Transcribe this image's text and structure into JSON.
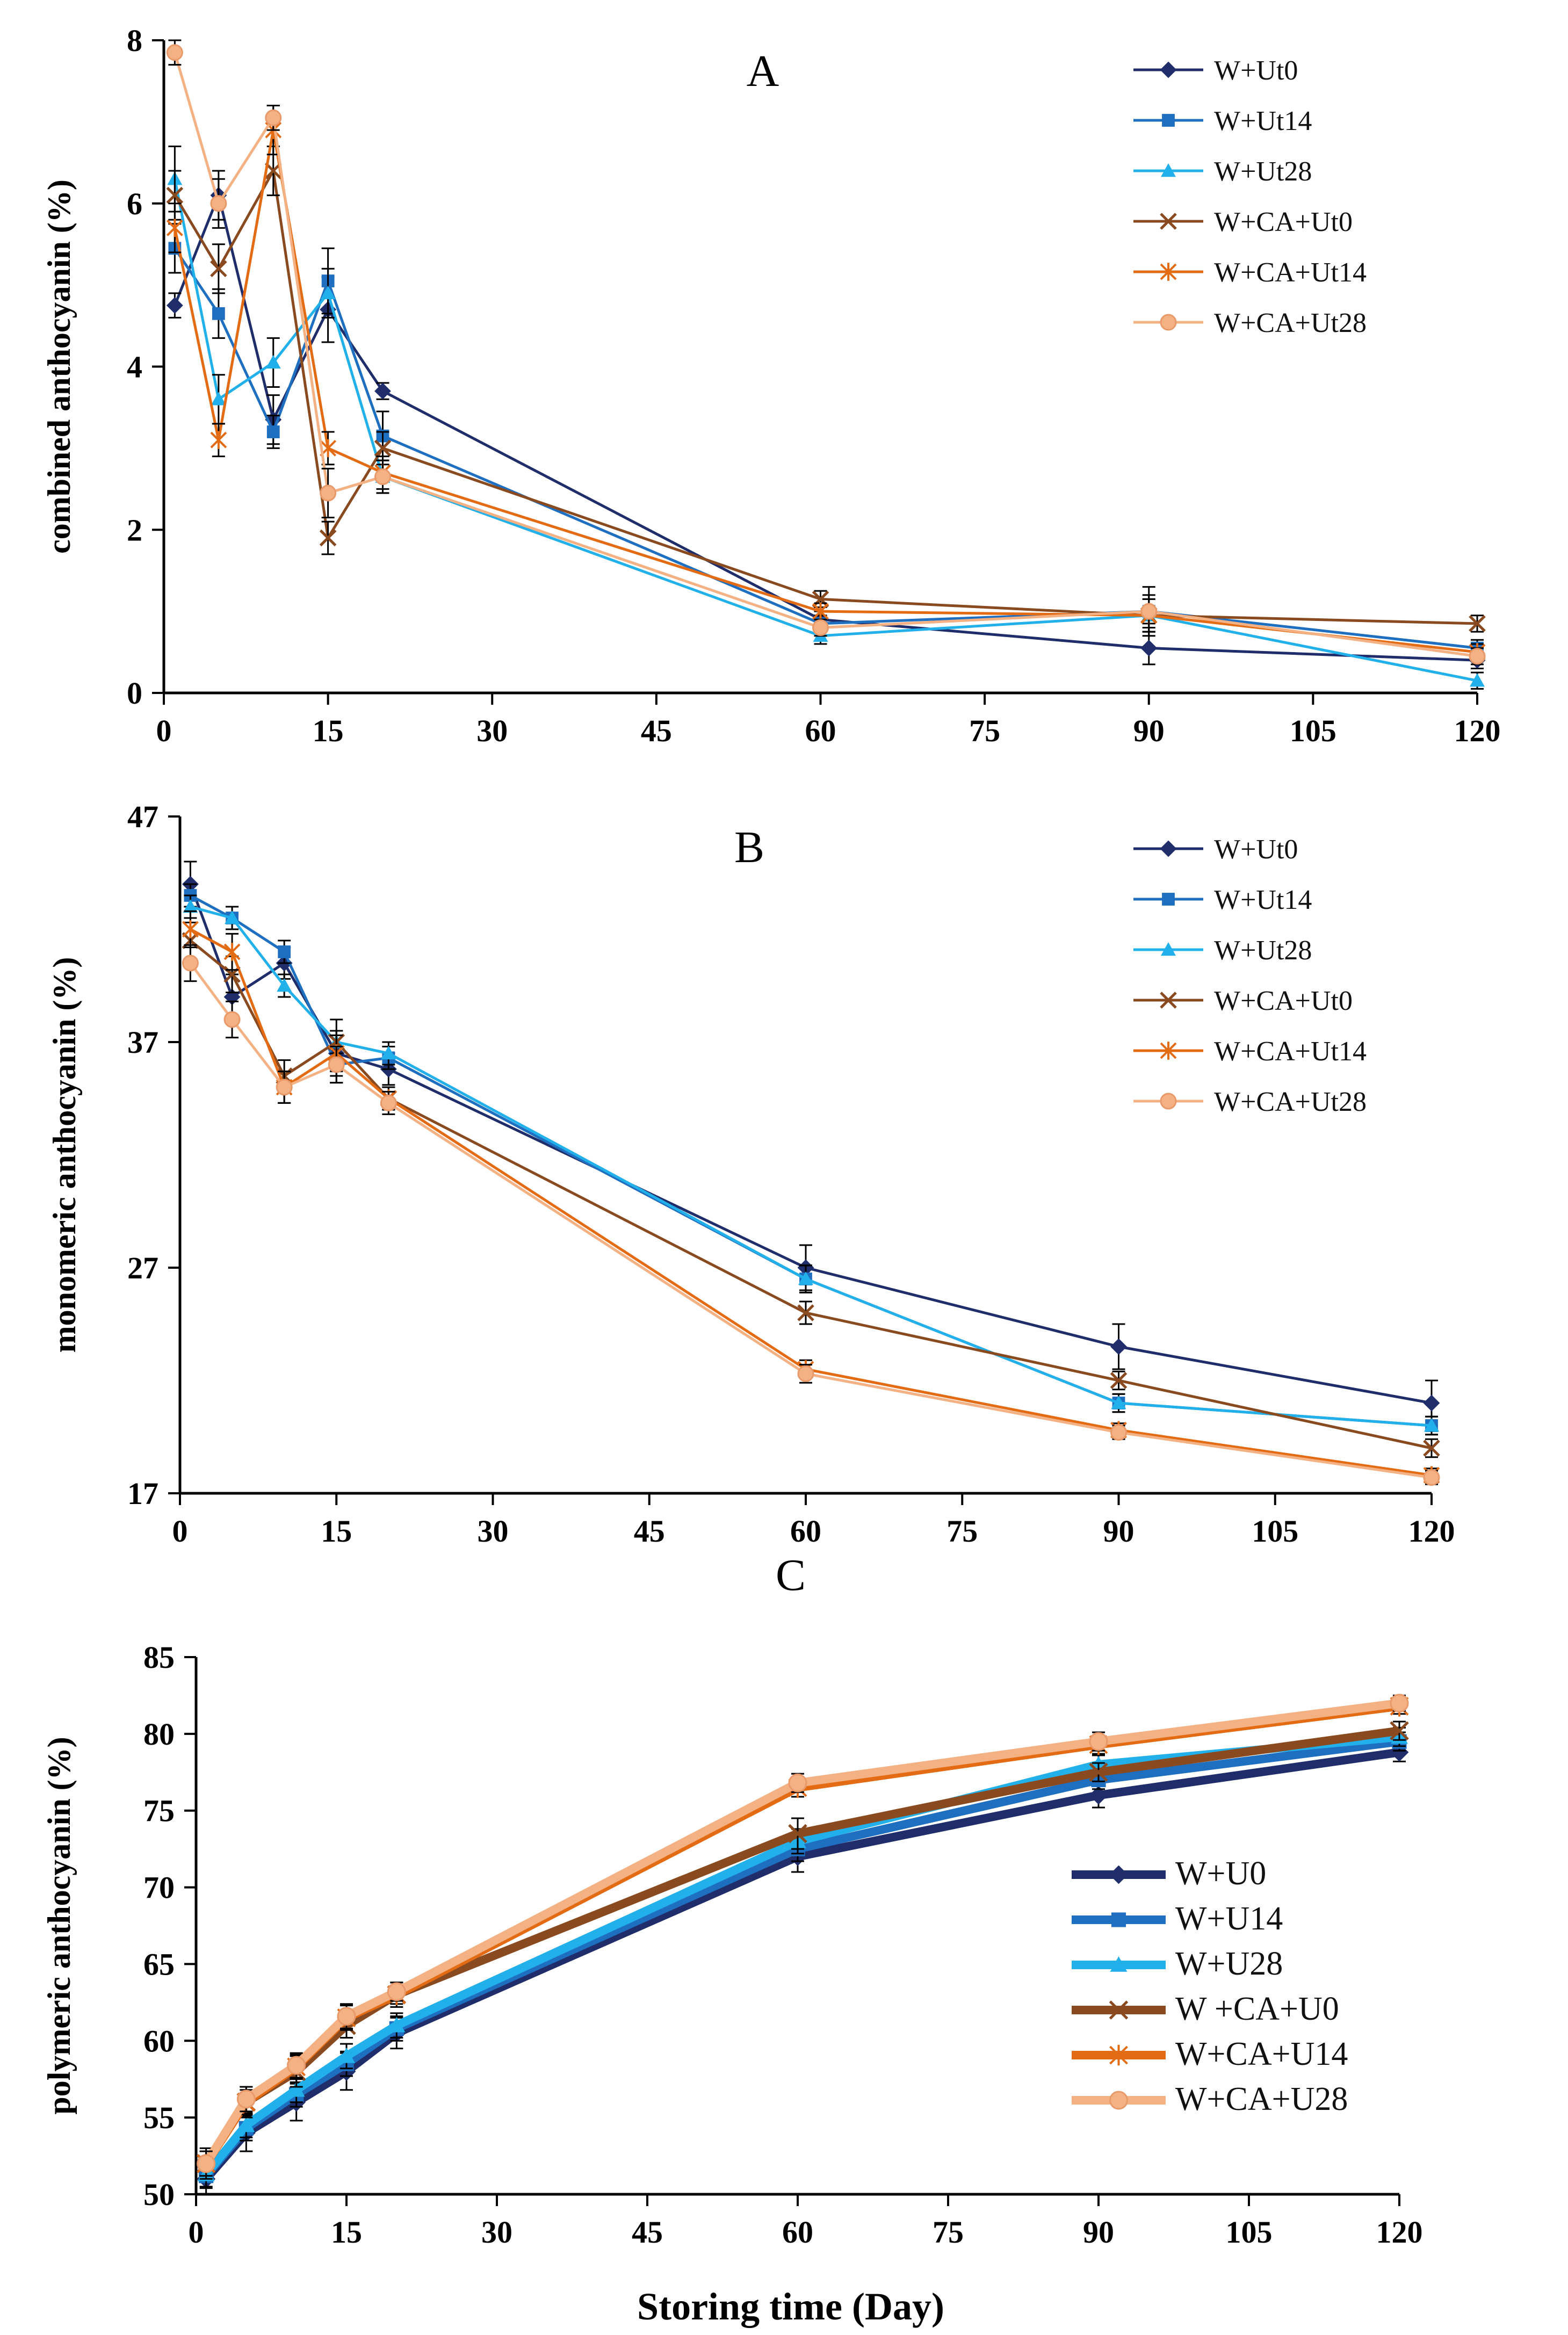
{
  "figure": {
    "xlabel": "Storing time (Day)",
    "x_ticks": [
      "0",
      "15",
      "30",
      "45",
      "60",
      "75",
      "90",
      "105",
      "120"
    ],
    "colors": {
      "W+Ut0": "#1f2e6b",
      "W+Ut14": "#1f6fc0",
      "W+Ut28": "#22b0ea",
      "W+CA+Ut0": "#8a4a1f",
      "W+CA+Ut14": "#e36b14",
      "W+CA+Ut28": "#f4b183"
    }
  },
  "chart_data": [
    {
      "type": "line",
      "panel": "A",
      "title": "A",
      "xlabel": "",
      "ylabel": "combined anthocyanin (%)",
      "xlim": [
        0,
        120
      ],
      "ylim": [
        0,
        8
      ],
      "y_ticks": [
        "0",
        "2",
        "4",
        "6",
        "8"
      ],
      "x": [
        1,
        5,
        10,
        15,
        20,
        60,
        90,
        120
      ],
      "series": [
        {
          "name": "W+Ut0",
          "marker": "diamond",
          "values": [
            4.75,
            6.1,
            3.35,
            4.7,
            3.7,
            0.9,
            0.55,
            0.4
          ],
          "err": [
            0.15,
            0.3,
            0.3,
            0.4,
            0.1,
            0.1,
            0.2,
            0.1
          ]
        },
        {
          "name": "W+Ut14",
          "marker": "square",
          "values": [
            5.45,
            4.65,
            3.2,
            5.05,
            3.15,
            0.85,
            1.0,
            0.55
          ],
          "err": [
            0.3,
            0.3,
            0.2,
            0.4,
            0.3,
            0.1,
            0.3,
            0.1
          ]
        },
        {
          "name": "W+Ut28",
          "marker": "triangle",
          "values": [
            6.3,
            3.6,
            4.05,
            4.9,
            2.65,
            0.7,
            0.95,
            0.15
          ],
          "err": [
            0.4,
            0.3,
            0.3,
            0.3,
            0.2,
            0.1,
            0.1,
            0.1
          ]
        },
        {
          "name": "W+CA+Ut0",
          "marker": "x",
          "values": [
            6.1,
            5.2,
            6.4,
            1.9,
            3.0,
            1.15,
            0.95,
            0.85
          ],
          "err": [
            0.3,
            0.3,
            0.3,
            0.2,
            0.2,
            0.1,
            0.2,
            0.1
          ]
        },
        {
          "name": "W+CA+Ut14",
          "marker": "asterisk",
          "values": [
            5.7,
            3.1,
            6.9,
            3.0,
            2.7,
            1.0,
            0.95,
            0.5
          ],
          "err": [
            0.3,
            0.2,
            0.3,
            0.2,
            0.2,
            0.1,
            0.2,
            0.1
          ]
        },
        {
          "name": "W+CA+Ut28",
          "marker": "circle",
          "values": [
            7.85,
            6.0,
            7.05,
            2.45,
            2.65,
            0.8,
            1.0,
            0.45
          ],
          "err": [
            0.15,
            0.3,
            0.15,
            0.3,
            0.2,
            0.1,
            0.2,
            0.1
          ]
        }
      ]
    },
    {
      "type": "line",
      "panel": "B",
      "title": "B",
      "xlabel": "",
      "ylabel": "monomeric anthocyanin  (%)",
      "xlim": [
        0,
        120
      ],
      "ylim": [
        17,
        47
      ],
      "y_ticks": [
        "17",
        "27",
        "37",
        "47"
      ],
      "x": [
        1,
        5,
        10,
        15,
        20,
        60,
        90,
        120
      ],
      "series": [
        {
          "name": "W+Ut0",
          "marker": "diamond",
          "values": [
            44.0,
            39.0,
            40.5,
            36.5,
            35.8,
            27.0,
            23.5,
            21.0
          ],
          "err": [
            1.0,
            1.0,
            0.7,
            1.0,
            0.7,
            1.0,
            1.0,
            1.0
          ]
        },
        {
          "name": "W+Ut14",
          "marker": "square",
          "values": [
            43.5,
            42.5,
            41.0,
            36.0,
            36.3,
            26.5,
            21.0,
            20.0
          ],
          "err": [
            0.5,
            0.5,
            0.5,
            0.8,
            0.5,
            0.6,
            0.4,
            0.4
          ]
        },
        {
          "name": "W+Ut28",
          "marker": "triangle",
          "values": [
            43.0,
            42.5,
            39.5,
            37.0,
            36.5,
            26.5,
            21.0,
            20.0
          ],
          "err": [
            0.5,
            0.5,
            0.5,
            0.5,
            0.5,
            0.6,
            0.4,
            0.4
          ]
        },
        {
          "name": "W+CA+Ut0",
          "marker": "x",
          "values": [
            41.5,
            40.0,
            35.5,
            37.0,
            34.5,
            25.0,
            22.0,
            19.0
          ],
          "err": [
            0.8,
            0.8,
            0.7,
            1.0,
            0.5,
            0.5,
            0.4,
            0.4
          ]
        },
        {
          "name": "W+CA+Ut14",
          "marker": "asterisk",
          "values": [
            42.0,
            41.0,
            35.0,
            36.5,
            34.5,
            22.5,
            19.8,
            17.8
          ],
          "err": [
            0.8,
            0.8,
            0.7,
            0.8,
            0.5,
            0.4,
            0.3,
            0.3
          ]
        },
        {
          "name": "W+CA+Ut28",
          "marker": "circle",
          "values": [
            40.5,
            38.0,
            35.0,
            36.0,
            34.3,
            22.3,
            19.7,
            17.7
          ],
          "err": [
            0.8,
            0.8,
            0.7,
            0.8,
            0.5,
            0.4,
            0.3,
            0.3
          ]
        }
      ]
    },
    {
      "type": "line",
      "panel": "C",
      "title": "C",
      "xlabel": "Storing time (Day)",
      "ylabel": "polymeric anthocyanin (%)",
      "xlim": [
        0,
        120
      ],
      "ylim": [
        50,
        85
      ],
      "y_ticks": [
        "50",
        "55",
        "60",
        "65",
        "70",
        "75",
        "80",
        "85"
      ],
      "x": [
        1,
        5,
        10,
        15,
        20,
        60,
        90,
        120
      ],
      "series": [
        {
          "name": "W+U0",
          "marker": "diamond",
          "values": [
            51.0,
            54.0,
            56.0,
            58.0,
            60.5,
            72.0,
            76.0,
            78.8
          ],
          "err": [
            1.0,
            1.2,
            1.2,
            1.2,
            1.0,
            1.0,
            0.8,
            0.6
          ]
        },
        {
          "name": "W+U14",
          "marker": "square",
          "values": [
            51.2,
            54.3,
            56.5,
            58.5,
            60.8,
            72.5,
            77.0,
            79.5
          ],
          "err": [
            0.8,
            0.8,
            0.8,
            0.8,
            0.8,
            0.8,
            0.6,
            0.6
          ]
        },
        {
          "name": "W+U28",
          "marker": "triangle",
          "values": [
            51.3,
            54.5,
            56.8,
            59.0,
            61.0,
            73.0,
            78.0,
            79.8
          ],
          "err": [
            0.8,
            0.8,
            0.8,
            0.8,
            0.8,
            0.8,
            0.6,
            0.6
          ]
        },
        {
          "name": "W +CA+U0",
          "marker": "x",
          "values": [
            52.0,
            56.0,
            58.0,
            61.0,
            63.0,
            73.5,
            77.5,
            80.2
          ],
          "err": [
            1.0,
            1.0,
            1.0,
            0.8,
            0.8,
            1.0,
            0.6,
            0.6
          ]
        },
        {
          "name": "W+CA+U14",
          "marker": "asterisk",
          "values": [
            52.0,
            56.0,
            58.3,
            61.5,
            63.0,
            76.5,
            79.3,
            81.8
          ],
          "err": [
            0.8,
            0.8,
            0.8,
            0.8,
            0.6,
            0.6,
            0.6,
            0.5
          ]
        },
        {
          "name": "W+CA+U28",
          "marker": "circle",
          "values": [
            52.0,
            56.2,
            58.4,
            61.6,
            63.2,
            76.8,
            79.5,
            82.0
          ],
          "err": [
            0.8,
            0.8,
            0.8,
            0.8,
            0.6,
            0.6,
            0.6,
            0.5
          ]
        }
      ]
    }
  ]
}
